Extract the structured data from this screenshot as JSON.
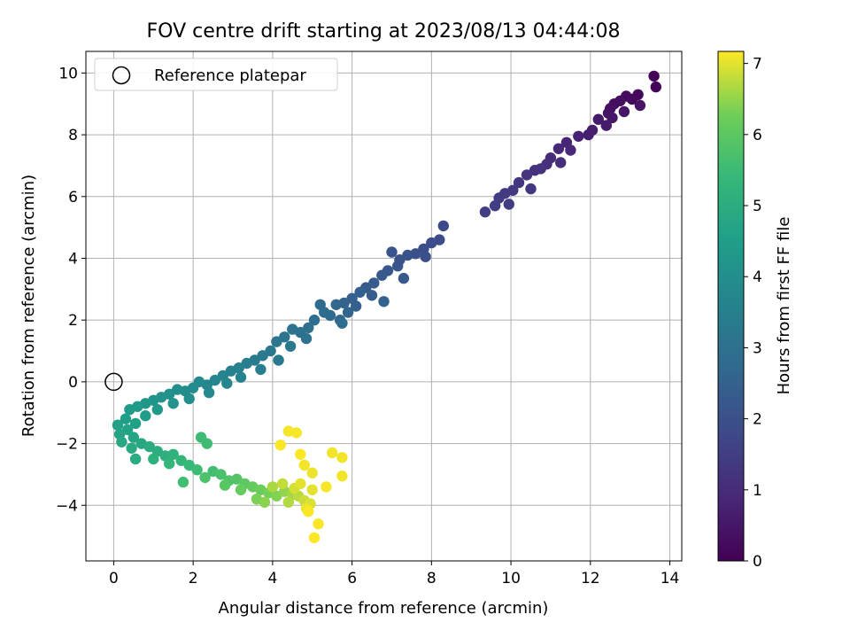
{
  "chart_data": {
    "type": "scatter",
    "title": "FOV centre drift starting at 2023/08/13 04:44:08",
    "xlabel": "Angular distance from reference (arcmin)",
    "ylabel": "Rotation from reference (arcmin)",
    "xlim": [
      -0.7,
      14.3
    ],
    "ylim": [
      -5.8,
      10.7
    ],
    "xticks": [
      0,
      2,
      4,
      6,
      8,
      10,
      12,
      14
    ],
    "yticks": [
      -4,
      -2,
      0,
      2,
      4,
      6,
      8,
      10
    ],
    "grid": true,
    "legend": {
      "position": "top-left",
      "entries": [
        "Reference platepar"
      ]
    },
    "reference_point": {
      "x": 0,
      "y": 0
    },
    "colorbar": {
      "label": "Hours from first FF file",
      "range": [
        0,
        7.17
      ],
      "ticks": [
        0,
        1,
        2,
        3,
        4,
        5,
        6,
        7
      ],
      "colormap": "viridis"
    },
    "series": [
      {
        "points": [
          [
            13.6,
            9.9,
            0.05
          ],
          [
            13.65,
            9.55,
            0.1
          ],
          [
            13.2,
            9.3,
            0.15
          ],
          [
            13.05,
            9.15,
            0.2
          ],
          [
            12.9,
            9.25,
            0.25
          ],
          [
            12.75,
            9.1,
            0.3
          ],
          [
            12.6,
            9.0,
            0.3
          ],
          [
            12.5,
            8.85,
            0.35
          ],
          [
            12.45,
            8.7,
            0.4
          ],
          [
            12.85,
            8.75,
            0.45
          ],
          [
            13.25,
            8.95,
            0.45
          ],
          [
            12.55,
            8.55,
            0.5
          ],
          [
            12.2,
            8.5,
            0.55
          ],
          [
            12.4,
            8.3,
            0.6
          ],
          [
            12.05,
            8.15,
            0.65
          ],
          [
            11.95,
            8.0,
            0.7
          ],
          [
            11.7,
            7.95,
            0.75
          ],
          [
            11.4,
            7.75,
            0.85
          ],
          [
            11.2,
            7.55,
            0.9
          ],
          [
            11.5,
            7.5,
            0.9
          ],
          [
            11.0,
            7.25,
            1.0
          ],
          [
            11.25,
            7.1,
            1.05
          ],
          [
            10.9,
            7.05,
            1.1
          ],
          [
            10.6,
            6.85,
            1.15
          ],
          [
            10.4,
            6.7,
            1.2
          ],
          [
            10.75,
            6.9,
            1.2
          ],
          [
            10.2,
            6.45,
            1.25
          ],
          [
            10.5,
            6.25,
            1.3
          ],
          [
            10.05,
            6.2,
            1.35
          ],
          [
            9.85,
            6.1,
            1.4
          ],
          [
            9.7,
            5.95,
            1.45
          ],
          [
            9.95,
            5.75,
            1.45
          ],
          [
            9.6,
            5.7,
            1.5
          ],
          [
            9.35,
            5.5,
            1.5
          ],
          [
            8.3,
            5.05,
            1.8
          ],
          [
            8.2,
            4.6,
            1.85
          ],
          [
            8.0,
            4.5,
            1.9
          ],
          [
            7.8,
            4.3,
            1.95
          ],
          [
            7.6,
            4.15,
            2.0
          ],
          [
            7.85,
            4.05,
            2.0
          ],
          [
            7.4,
            4.1,
            2.05
          ],
          [
            7.2,
            3.95,
            2.1
          ],
          [
            7.0,
            4.2,
            2.15
          ],
          [
            7.15,
            3.75,
            2.15
          ],
          [
            6.9,
            3.6,
            2.2
          ],
          [
            6.75,
            3.45,
            2.25
          ],
          [
            7.3,
            3.35,
            2.25
          ],
          [
            6.55,
            3.2,
            2.3
          ],
          [
            6.35,
            3.05,
            2.35
          ],
          [
            6.5,
            2.8,
            2.4
          ],
          [
            6.2,
            2.9,
            2.45
          ],
          [
            6.0,
            2.7,
            2.5
          ],
          [
            6.1,
            2.45,
            2.5
          ],
          [
            5.8,
            2.55,
            2.55
          ],
          [
            6.8,
            2.6,
            2.55
          ],
          [
            5.9,
            2.25,
            2.6
          ],
          [
            5.6,
            2.5,
            2.65
          ],
          [
            5.7,
            2.0,
            2.65
          ],
          [
            5.45,
            2.15,
            2.75
          ],
          [
            5.2,
            2.5,
            2.8
          ],
          [
            5.3,
            2.25,
            2.85
          ],
          [
            5.05,
            2.0,
            2.9
          ],
          [
            5.75,
            1.9,
            2.9
          ],
          [
            4.9,
            1.75,
            2.95
          ],
          [
            4.7,
            1.6,
            3.0
          ],
          [
            4.5,
            1.7,
            3.05
          ],
          [
            4.85,
            1.4,
            3.05
          ],
          [
            4.3,
            1.45,
            3.1
          ],
          [
            4.1,
            1.3,
            3.15
          ],
          [
            4.45,
            1.15,
            3.2
          ],
          [
            3.95,
            1.0,
            3.25
          ],
          [
            3.75,
            0.85,
            3.3
          ],
          [
            4.15,
            0.7,
            3.3
          ],
          [
            3.55,
            0.7,
            3.35
          ],
          [
            3.35,
            0.6,
            3.4
          ],
          [
            3.7,
            0.4,
            3.45
          ],
          [
            3.15,
            0.45,
            3.5
          ],
          [
            2.95,
            0.35,
            3.55
          ],
          [
            3.2,
            0.15,
            3.6
          ],
          [
            2.75,
            0.2,
            3.6
          ],
          [
            2.55,
            0.05,
            3.65
          ],
          [
            2.85,
            -0.05,
            3.7
          ],
          [
            2.35,
            -0.1,
            3.75
          ],
          [
            2.15,
            0.0,
            3.8
          ],
          [
            2.4,
            -0.35,
            3.85
          ],
          [
            2.0,
            -0.2,
            3.9
          ],
          [
            1.8,
            -0.3,
            3.95
          ],
          [
            1.6,
            -0.25,
            4.0
          ],
          [
            1.9,
            -0.55,
            4.0
          ],
          [
            1.4,
            -0.4,
            4.05
          ],
          [
            1.2,
            -0.5,
            4.1
          ],
          [
            1.5,
            -0.7,
            4.15
          ],
          [
            1.0,
            -0.6,
            4.2
          ],
          [
            0.8,
            -0.7,
            4.25
          ],
          [
            1.1,
            -0.9,
            4.3
          ],
          [
            0.6,
            -0.8,
            4.35
          ],
          [
            0.4,
            -0.9,
            4.4
          ],
          [
            0.8,
            -1.1,
            4.45
          ],
          [
            0.3,
            -1.2,
            4.5
          ],
          [
            0.55,
            -1.35,
            4.55
          ],
          [
            0.1,
            -1.4,
            4.6
          ],
          [
            0.35,
            -1.55,
            4.65
          ],
          [
            0.15,
            -1.7,
            4.7
          ],
          [
            0.5,
            -1.8,
            4.75
          ],
          [
            0.2,
            -1.95,
            4.8
          ],
          [
            0.7,
            -2.0,
            4.85
          ],
          [
            0.45,
            -2.15,
            4.9
          ],
          [
            0.9,
            -2.1,
            4.95
          ],
          [
            0.55,
            -2.5,
            4.95
          ],
          [
            1.1,
            -2.25,
            5.0
          ],
          [
            1.3,
            -2.4,
            5.1
          ],
          [
            1.0,
            -2.5,
            5.15
          ],
          [
            1.5,
            -2.35,
            5.2
          ],
          [
            1.7,
            -2.55,
            5.3
          ],
          [
            1.4,
            -2.65,
            5.35
          ],
          [
            1.9,
            -2.7,
            5.4
          ],
          [
            2.1,
            -2.85,
            5.5
          ],
          [
            2.2,
            -1.8,
            5.5
          ],
          [
            2.35,
            -2.0,
            5.55
          ],
          [
            1.75,
            -3.25,
            5.6
          ],
          [
            2.5,
            -2.9,
            5.6
          ],
          [
            2.7,
            -3.0,
            5.7
          ],
          [
            2.3,
            -3.1,
            5.75
          ],
          [
            2.9,
            -3.2,
            5.8
          ],
          [
            3.1,
            -3.15,
            5.9
          ],
          [
            2.8,
            -3.35,
            5.95
          ],
          [
            3.3,
            -3.3,
            6.0
          ],
          [
            3.5,
            -3.4,
            6.1
          ],
          [
            3.2,
            -3.5,
            6.15
          ],
          [
            3.7,
            -3.5,
            6.2
          ],
          [
            3.9,
            -3.6,
            6.3
          ],
          [
            3.6,
            -3.8,
            6.35
          ],
          [
            4.1,
            -3.7,
            6.4
          ],
          [
            3.8,
            -3.9,
            6.45
          ],
          [
            4.3,
            -3.55,
            6.5
          ],
          [
            4.5,
            -3.65,
            6.6
          ],
          [
            4.0,
            -3.4,
            6.65
          ],
          [
            4.4,
            -3.9,
            6.7
          ],
          [
            4.65,
            -3.7,
            6.75
          ],
          [
            4.25,
            -3.3,
            6.8
          ],
          [
            4.8,
            -3.85,
            6.85
          ],
          [
            4.55,
            -3.45,
            6.9
          ],
          [
            4.95,
            -3.95,
            6.95
          ],
          [
            4.7,
            -3.3,
            7.0
          ],
          [
            5.0,
            -3.5,
            7.0
          ],
          [
            4.85,
            -4.1,
            7.05
          ],
          [
            5.0,
            -2.95,
            7.05
          ],
          [
            4.8,
            -2.7,
            7.1
          ],
          [
            5.5,
            -2.3,
            7.1
          ],
          [
            5.75,
            -2.45,
            7.1
          ],
          [
            5.75,
            -3.05,
            7.1
          ],
          [
            5.35,
            -3.4,
            7.12
          ],
          [
            4.6,
            -1.65,
            7.12
          ],
          [
            4.4,
            -1.6,
            7.12
          ],
          [
            4.2,
            -2.05,
            7.14
          ],
          [
            4.9,
            -4.2,
            7.14
          ],
          [
            5.15,
            -4.6,
            7.15
          ],
          [
            5.05,
            -5.05,
            7.16
          ],
          [
            4.7,
            -2.35,
            7.16
          ]
        ]
      }
    ]
  }
}
